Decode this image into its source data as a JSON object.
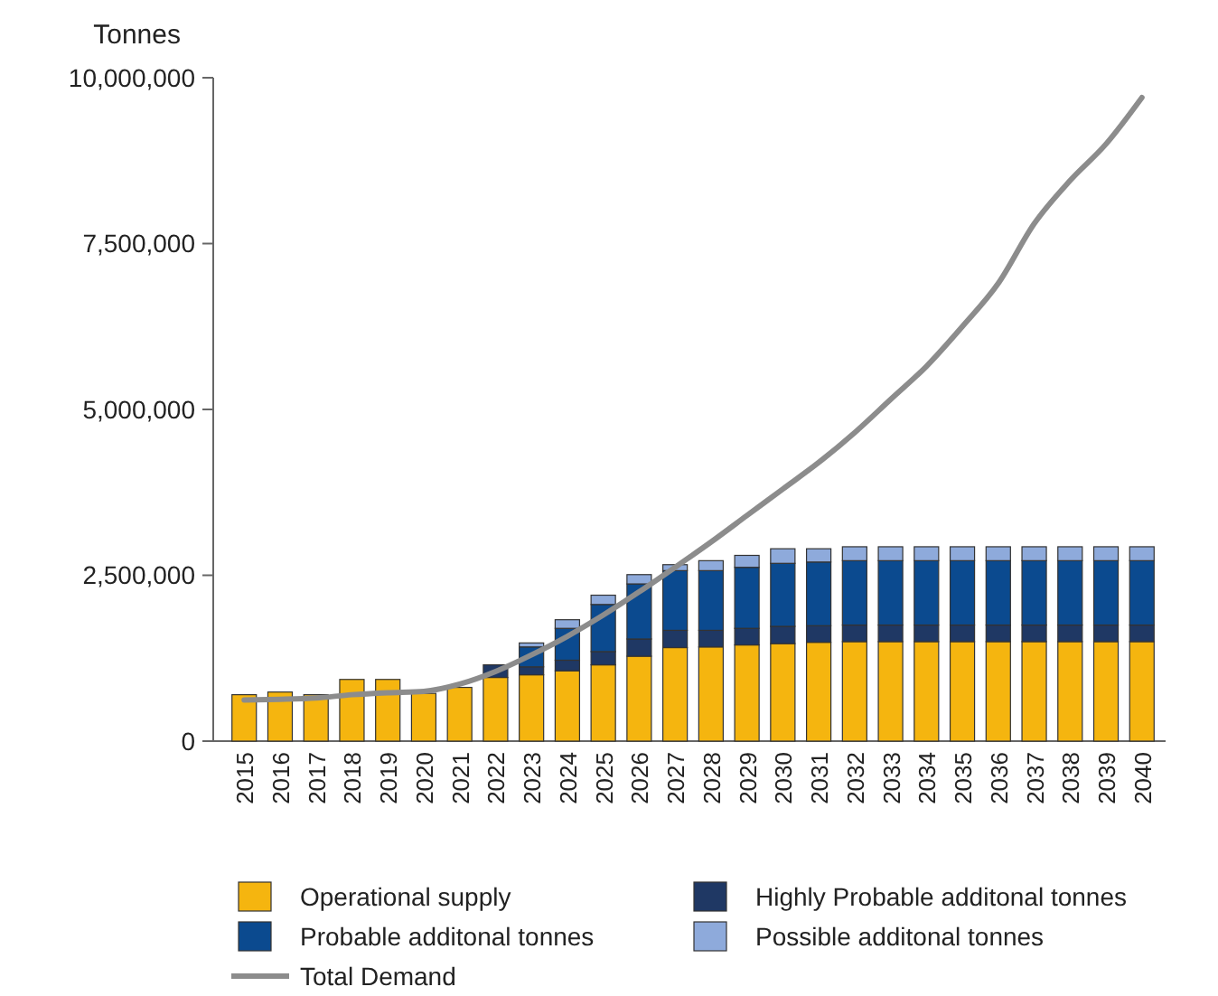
{
  "chart_data": {
    "type": "bar",
    "stacked": true,
    "ylabel": "Tonnes",
    "legend": "bottom",
    "grid": false,
    "categories": [
      "2015",
      "2016",
      "2017",
      "2018",
      "2019",
      "2020",
      "2021",
      "2022",
      "2023",
      "2024",
      "2025",
      "2026",
      "2027",
      "2028",
      "2029",
      "2030",
      "2031",
      "2032",
      "2033",
      "2034",
      "2035",
      "2036",
      "2037",
      "2038",
      "2039",
      "2040"
    ],
    "ylim": [
      0,
      10000000
    ],
    "yticks": [
      {
        "value": 0,
        "label": "0"
      },
      {
        "value": 2500000,
        "label": "2,500,000"
      },
      {
        "value": 5000000,
        "label": "5,000,000"
      },
      {
        "value": 7500000,
        "label": "7,500,000"
      },
      {
        "value": 10000000,
        "label": "10,000,000"
      }
    ],
    "series": [
      {
        "name": "Operational supply",
        "color": "#f5b50f",
        "values": [
          700000,
          740000,
          700000,
          930000,
          930000,
          720000,
          810000,
          960000,
          1000000,
          1060000,
          1150000,
          1280000,
          1410000,
          1420000,
          1450000,
          1470000,
          1490000,
          1500000,
          1500000,
          1500000,
          1500000,
          1500000,
          1500000,
          1500000,
          1500000,
          1500000
        ]
      },
      {
        "name": "Highly Probable additonal tonnes",
        "color": "#1f3864",
        "values": [
          0,
          0,
          0,
          0,
          0,
          0,
          0,
          190000,
          120000,
          160000,
          200000,
          260000,
          260000,
          250000,
          250000,
          260000,
          250000,
          250000,
          250000,
          250000,
          250000,
          250000,
          250000,
          250000,
          250000,
          250000
        ]
      },
      {
        "name": "Probable additonal tonnes",
        "color": "#0b4a8f",
        "values": [
          0,
          0,
          0,
          0,
          0,
          0,
          0,
          0,
          300000,
          480000,
          710000,
          830000,
          900000,
          900000,
          920000,
          950000,
          960000,
          970000,
          970000,
          970000,
          970000,
          970000,
          970000,
          970000,
          970000,
          970000
        ]
      },
      {
        "name": "Possible additonal tonnes",
        "color": "#8eaadb",
        "values": [
          0,
          0,
          0,
          0,
          0,
          0,
          0,
          0,
          60000,
          130000,
          140000,
          140000,
          90000,
          150000,
          180000,
          220000,
          200000,
          210000,
          210000,
          210000,
          210000,
          210000,
          210000,
          210000,
          210000,
          210000
        ]
      },
      {
        "name": "Total Demand",
        "type": "line",
        "color": "#8c8c8c",
        "values": [
          620000,
          630000,
          650000,
          700000,
          730000,
          750000,
          860000,
          1050000,
          1300000,
          1580000,
          1900000,
          2250000,
          2620000,
          3000000,
          3400000,
          3800000,
          4200000,
          4650000,
          5150000,
          5650000,
          6250000,
          6900000,
          7800000,
          8450000,
          9000000,
          9700000
        ]
      }
    ]
  }
}
